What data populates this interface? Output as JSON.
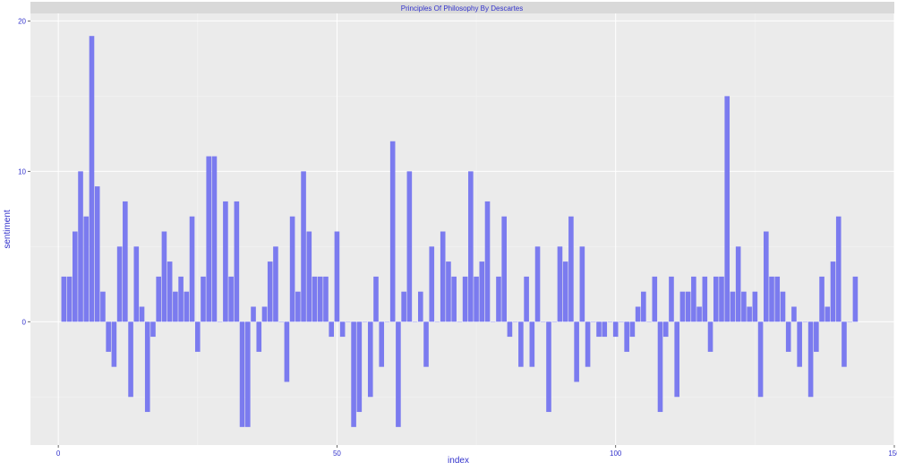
{
  "chart_data": {
    "type": "bar",
    "title": "Principles Of Philosophy By Descartes",
    "xlabel": "index",
    "ylabel": "sentiment",
    "xlim": [
      -5,
      150
    ],
    "ylim": [
      -8.2,
      20.5
    ],
    "x_ticks": [
      0,
      50,
      100,
      150
    ],
    "y_ticks": [
      0,
      10,
      20
    ],
    "grid": true,
    "colors": {
      "bar": "#7b7bef",
      "panel": "#ebebeb",
      "strip": "#d9d9d9",
      "grid_major": "#ffffff",
      "grid_minor": "#f4f4f4",
      "text": "#3333cc"
    },
    "x": [
      1,
      2,
      3,
      4,
      5,
      6,
      7,
      8,
      9,
      10,
      11,
      12,
      13,
      14,
      15,
      16,
      17,
      18,
      19,
      20,
      21,
      22,
      23,
      24,
      25,
      26,
      27,
      28,
      29,
      30,
      31,
      32,
      33,
      34,
      35,
      36,
      37,
      38,
      39,
      40,
      41,
      42,
      43,
      44,
      45,
      46,
      47,
      48,
      49,
      50,
      51,
      52,
      53,
      54,
      55,
      56,
      57,
      58,
      59,
      60,
      61,
      62,
      63,
      64,
      65,
      66,
      67,
      68,
      69,
      70,
      71,
      72,
      73,
      74,
      75,
      76,
      77,
      78,
      79,
      80,
      81,
      82,
      83,
      84,
      85,
      86,
      87,
      88,
      89,
      90,
      91,
      92,
      93,
      94,
      95,
      96,
      97,
      98,
      99,
      100,
      101,
      102,
      103,
      104,
      105,
      106,
      107,
      108,
      109,
      110,
      111,
      112,
      113,
      114,
      115,
      116,
      117,
      118,
      119,
      120,
      121,
      122,
      123,
      124,
      125,
      126,
      127,
      128,
      129,
      130,
      131,
      132,
      133,
      134,
      135,
      136,
      137,
      138,
      139,
      140,
      141,
      142,
      143
    ],
    "values": [
      3,
      3,
      6,
      10,
      7,
      19,
      9,
      2,
      -2,
      -3,
      5,
      8,
      -5,
      5,
      1,
      -6,
      -1,
      3,
      6,
      4,
      2,
      3,
      2,
      7,
      -2,
      3,
      11,
      11,
      0,
      8,
      3,
      8,
      -7,
      -7,
      1,
      -2,
      1,
      4,
      5,
      0,
      -4,
      7,
      2,
      10,
      6,
      3,
      3,
      3,
      -1,
      6,
      -1,
      0,
      -7,
      -6,
      0,
      -5,
      3,
      -3,
      0,
      12,
      -7,
      2,
      10,
      0,
      2,
      -3,
      5,
      0,
      6,
      4,
      3,
      0,
      3,
      10,
      3,
      4,
      8,
      0,
      3,
      7,
      -1,
      0,
      -3,
      3,
      -3,
      5,
      0,
      -6,
      0,
      5,
      4,
      7,
      -4,
      5,
      -3,
      0,
      -1,
      -1,
      0,
      -1,
      0,
      -2,
      -1,
      1,
      2,
      0,
      3,
      -6,
      -1,
      3,
      -5,
      2,
      2,
      3,
      1,
      3,
      -2,
      3,
      3,
      15,
      2,
      5,
      2,
      1,
      2,
      -5,
      6,
      3,
      3,
      2,
      -2,
      1,
      -3,
      0,
      -5,
      -2,
      3,
      1,
      4,
      7,
      -3,
      0,
      3
    ]
  }
}
